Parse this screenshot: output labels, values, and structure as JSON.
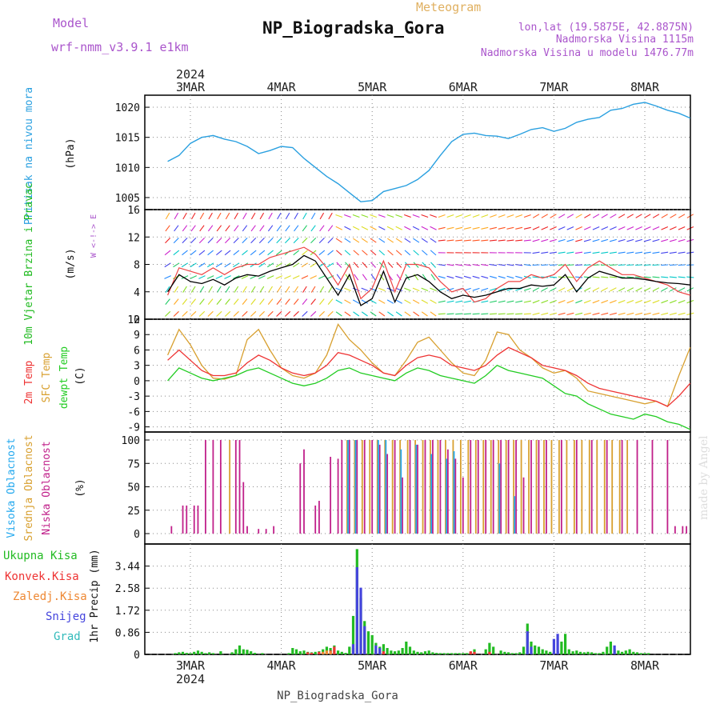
{
  "header": {
    "model_label": "Model",
    "model_name": "wrf-nmm_v3.9.1 e1km",
    "subtitle": "Meteogram",
    "title": "NP_Biogradska_Gora",
    "lonlat": "lon,lat (19.5875E, 42.8875N)",
    "elevation": "Nadmorska Visina 1115m",
    "model_elevation": "Nadmorska Visina u modelu 1476.77m",
    "footer_station": "NP_Biogradska_Gora",
    "watermark": "made by Angel"
  },
  "colors": {
    "pressure": "#2aa0e0",
    "temp2m": "#ee3333",
    "sfc": "#d8a030",
    "dewpt": "#22cc22",
    "high_cloud": "#22a8ee",
    "mid_cloud": "#d8a030",
    "low_cloud": "#c0208a",
    "total_precip": "#22bb22",
    "conv_precip": "#ee3333",
    "frozen": "#ee8833",
    "snow": "#4444dd",
    "graupel": "#33bbbb",
    "wind_label": "#22bb22",
    "model_text": "#aa55cc",
    "subtitle": "#e0b060"
  },
  "chart_data": [
    {
      "type": "line",
      "panel": "pressure",
      "ylabel": "Pritisak na nivou mora",
      "yunit": "(hPa)",
      "ylim": [
        1003,
        1022
      ],
      "yticks": [
        1005,
        1010,
        1015,
        1020
      ],
      "x_year": "2024",
      "x_ticks": [
        "3MAR",
        "4MAR",
        "5MAR",
        "6MAR",
        "7MAR",
        "8MAR"
      ],
      "x_hours": [
        0,
        3,
        6,
        9,
        12,
        15,
        18,
        21,
        24,
        27,
        30,
        33,
        36,
        39,
        42,
        45,
        48,
        51,
        54,
        57,
        60,
        63,
        66,
        69,
        72,
        75,
        78,
        81,
        84,
        87,
        90,
        93,
        96,
        99,
        102,
        105,
        108,
        111,
        114,
        117,
        120,
        123,
        126,
        129,
        132,
        135,
        138
      ],
      "series": [
        {
          "values": [
            1011.0,
            1012.0,
            1014.0,
            1015.0,
            1015.3,
            1014.7,
            1014.3,
            1013.5,
            1012.3,
            1012.8,
            1013.5,
            1013.3,
            1011.5,
            1010.0,
            1008.5,
            1007.3,
            1005.8,
            1004.3,
            1004.5,
            1006.0,
            1006.5,
            1007.0,
            1008.0,
            1009.5,
            1012.0,
            1014.3,
            1015.5,
            1015.7,
            1015.3,
            1015.2,
            1014.8,
            1015.5,
            1016.3,
            1016.6,
            1016.0,
            1016.5,
            1017.5,
            1018.0,
            1018.3,
            1019.5,
            1019.8,
            1020.5,
            1020.8,
            1020.2,
            1019.5,
            1019.0,
            1018.2
          ]
        }
      ]
    },
    {
      "type": "line",
      "panel": "wind",
      "ylabel": "10m Vjetar Brzina i Pravac",
      "yunit": "(m/s)",
      "ylim": [
        0,
        16
      ],
      "yticks": [
        0,
        4,
        8,
        12,
        16
      ],
      "compass_label": "W <-!-> E",
      "x_hours": [
        0,
        3,
        6,
        9,
        12,
        15,
        18,
        21,
        24,
        27,
        30,
        33,
        36,
        39,
        42,
        45,
        48,
        51,
        54,
        57,
        60,
        63,
        66,
        69,
        72,
        75,
        78,
        81,
        84,
        87,
        90,
        93,
        96,
        99,
        102,
        105,
        108,
        111,
        114,
        117,
        120,
        123,
        126,
        129,
        132,
        135,
        138
      ],
      "series": [
        {
          "name": "speed",
          "values": [
            4.0,
            6.5,
            5.5,
            5.2,
            5.8,
            5.0,
            6.0,
            6.5,
            6.3,
            7.0,
            7.5,
            8.0,
            9.3,
            8.5,
            6.0,
            3.5,
            6.5,
            2.0,
            3.0,
            7.0,
            2.5,
            6.0,
            6.5,
            5.5,
            4.0,
            3.0,
            3.5,
            3.2,
            3.5,
            4.0,
            4.5,
            4.5,
            5.0,
            4.8,
            5.0,
            6.5,
            4.0,
            6.0,
            7.0,
            6.5,
            6.0,
            6.0,
            5.8,
            5.5,
            5.3,
            5.2,
            5.0
          ]
        },
        {
          "name": "gust",
          "values": [
            3.5,
            7.5,
            7.0,
            6.5,
            7.5,
            6.5,
            7.5,
            8.0,
            8.0,
            9.0,
            9.5,
            10.0,
            10.5,
            9.5,
            7.5,
            5.0,
            8.0,
            3.0,
            4.5,
            8.5,
            4.0,
            8.0,
            8.0,
            7.5,
            5.5,
            4.0,
            4.5,
            2.5,
            3.0,
            4.5,
            5.5,
            5.5,
            6.5,
            6.0,
            6.5,
            8.0,
            5.5,
            7.5,
            8.5,
            7.5,
            6.5,
            6.5,
            6.0,
            5.5,
            5.0,
            4.0,
            3.5
          ]
        }
      ]
    },
    {
      "type": "line",
      "panel": "temperature",
      "ylabels": [
        "2m Temp",
        "SFC Temp",
        "dewpt Temp"
      ],
      "yunit": "(C)",
      "ylim": [
        -10,
        12
      ],
      "yticks": [
        -9,
        -6,
        -3,
        0,
        3,
        6,
        9,
        12
      ],
      "x_hours": [
        0,
        3,
        6,
        9,
        12,
        15,
        18,
        21,
        24,
        27,
        30,
        33,
        36,
        39,
        42,
        45,
        48,
        51,
        54,
        57,
        60,
        63,
        66,
        69,
        72,
        75,
        78,
        81,
        84,
        87,
        90,
        93,
        96,
        99,
        102,
        105,
        108,
        111,
        114,
        117,
        120,
        123,
        126,
        129,
        132,
        135,
        138
      ],
      "series": [
        {
          "name": "2m Temp",
          "values": [
            4.0,
            6.0,
            4.0,
            2.0,
            1.0,
            1.0,
            1.5,
            3.5,
            5.0,
            4.0,
            2.5,
            1.5,
            1.0,
            1.5,
            3.0,
            5.5,
            5.0,
            4.0,
            3.0,
            1.5,
            1.0,
            3.0,
            4.5,
            5.0,
            4.5,
            3.0,
            2.5,
            2.0,
            3.0,
            5.0,
            6.5,
            5.5,
            4.5,
            3.0,
            2.5,
            2.0,
            1.0,
            -0.5,
            -1.5,
            -2.0,
            -2.5,
            -3.0,
            -3.5,
            -4.0,
            -5.0,
            -3.0,
            -0.5
          ]
        },
        {
          "name": "SFC Temp",
          "values": [
            5.0,
            10.0,
            7.0,
            3.0,
            0.5,
            0.3,
            1.0,
            8.0,
            10.0,
            6.0,
            2.5,
            1.0,
            0.5,
            1.5,
            5.0,
            11.0,
            8.0,
            6.0,
            3.5,
            1.5,
            1.0,
            4.0,
            7.5,
            8.5,
            6.0,
            3.5,
            1.5,
            1.0,
            4.0,
            9.5,
            9.0,
            6.0,
            4.5,
            2.5,
            1.5,
            2.0,
            0.5,
            -2.0,
            -2.5,
            -3.0,
            -3.5,
            -4.0,
            -4.5,
            -4.0,
            -5.0,
            1.0,
            6.5
          ]
        },
        {
          "name": "dewpt Temp",
          "values": [
            0.0,
            2.5,
            1.5,
            0.5,
            0.0,
            0.5,
            1.0,
            2.0,
            2.5,
            1.5,
            0.5,
            -0.5,
            -1.0,
            -0.5,
            0.5,
            2.0,
            2.5,
            1.5,
            1.0,
            0.5,
            0.0,
            1.5,
            2.5,
            2.0,
            1.0,
            0.5,
            0.0,
            -0.5,
            1.0,
            3.0,
            2.0,
            1.5,
            1.0,
            0.5,
            -1.0,
            -2.5,
            -3.0,
            -4.5,
            -5.5,
            -6.5,
            -7.0,
            -7.5,
            -6.5,
            -7.0,
            -8.0,
            -8.5,
            -9.5
          ]
        }
      ]
    },
    {
      "type": "bar",
      "panel": "clouds",
      "ylabels": [
        "Visoka Oblacnost",
        "Srednja Oblacnost",
        "Niska Oblacnost"
      ],
      "yunit": "(%)",
      "ylim": [
        0,
        100
      ],
      "yticks": [
        0,
        25,
        50,
        75,
        100
      ],
      "series": [
        {
          "name": "Niska Oblacnost",
          "x": [
            1,
            4,
            5,
            7,
            8,
            10,
            12,
            14,
            18,
            19,
            20,
            21,
            24,
            26,
            28,
            35,
            36,
            39,
            40,
            43,
            45,
            46,
            48,
            50,
            52,
            54,
            56,
            58,
            60,
            62,
            64,
            66,
            68,
            70,
            72,
            74,
            76,
            78,
            80,
            82,
            84,
            86,
            88,
            90,
            92,
            94,
            96,
            98,
            100,
            104,
            108,
            112,
            116,
            120,
            124,
            128,
            132,
            134,
            136,
            137
          ],
          "values": [
            8,
            30,
            30,
            30,
            30,
            100,
            100,
            100,
            100,
            100,
            55,
            8,
            5,
            5,
            8,
            75,
            90,
            30,
            35,
            82,
            80,
            100,
            100,
            100,
            100,
            100,
            95,
            85,
            100,
            60,
            100,
            95,
            100,
            100,
            100,
            90,
            80,
            60,
            100,
            100,
            100,
            100,
            100,
            100,
            100,
            60,
            100,
            100,
            100,
            100,
            100,
            100,
            100,
            100,
            100,
            100,
            100,
            8,
            8,
            8
          ]
        },
        {
          "name": "Srednja Oblacnost",
          "x": [
            16,
            47,
            49,
            51,
            53,
            55,
            57,
            59,
            61,
            63,
            65,
            67,
            69,
            71,
            73,
            75,
            77,
            79,
            81,
            83,
            85,
            87,
            89,
            91,
            93,
            95,
            97,
            99,
            101,
            103,
            105,
            107,
            109,
            111,
            113,
            115,
            117,
            119,
            121
          ],
          "values": [
            100,
            100,
            100,
            100,
            100,
            100,
            100,
            100,
            100,
            100,
            100,
            100,
            100,
            100,
            100,
            100,
            100,
            100,
            100,
            100,
            100,
            100,
            100,
            100,
            100,
            100,
            100,
            100,
            100,
            100,
            100,
            100,
            100,
            100,
            100,
            100,
            100,
            100,
            100
          ]
        },
        {
          "name": "Visoka Oblacnost",
          "x": [
            48,
            50,
            56,
            58,
            62,
            66,
            70,
            74,
            76,
            88,
            92
          ],
          "values": [
            100,
            100,
            100,
            100,
            90,
            95,
            85,
            80,
            88,
            75,
            40
          ]
        }
      ]
    },
    {
      "type": "bar",
      "panel": "precip",
      "ylabel": "1hr Precip",
      "yunit": "(mm)",
      "legend": [
        "Ukupna Kisa",
        "Konvek.Kisa",
        "Zaledj.Kisa",
        "Snijeg",
        "Grad"
      ],
      "ylim": [
        0,
        4.3
      ],
      "yticks": [
        0,
        0.86,
        1.72,
        2.58,
        3.44
      ],
      "bottom_year": "2024",
      "series": [
        {
          "name": "Ukupna Kisa",
          "x": [
            2,
            3,
            4,
            5,
            6,
            7,
            8,
            9,
            10,
            11,
            12,
            14,
            17,
            18,
            19,
            20,
            21,
            22,
            23,
            25,
            32,
            33,
            34,
            35,
            36,
            37,
            38,
            39,
            40,
            41,
            42,
            43,
            44,
            45,
            46,
            47,
            48,
            49,
            50,
            51,
            52,
            53,
            54,
            55,
            56,
            57,
            58,
            59,
            60,
            61,
            62,
            63,
            64,
            65,
            66,
            67,
            68,
            69,
            70,
            71,
            72,
            73,
            74,
            75,
            76,
            77,
            78,
            79,
            80,
            81,
            84,
            85,
            86,
            88,
            89,
            90,
            91,
            92,
            93,
            94,
            95,
            96,
            97,
            98,
            99,
            100,
            101,
            102,
            103,
            104,
            105,
            106,
            107,
            108,
            109,
            110,
            111,
            112,
            113,
            114,
            115,
            116,
            117,
            118,
            119,
            120,
            121,
            122,
            123,
            124,
            125,
            126,
            127
          ],
          "values": [
            0.05,
            0.08,
            0.1,
            0.06,
            0.05,
            0.1,
            0.15,
            0.1,
            0.05,
            0.08,
            0.05,
            0.12,
            0.08,
            0.2,
            0.35,
            0.2,
            0.18,
            0.12,
            0.06,
            0.05,
            0.05,
            0.25,
            0.2,
            0.12,
            0.15,
            0.1,
            0.08,
            0.1,
            0.12,
            0.2,
            0.3,
            0.25,
            0.35,
            0.15,
            0.1,
            0.06,
            0.3,
            1.5,
            4.1,
            2.2,
            1.3,
            0.9,
            0.75,
            0.45,
            0.3,
            0.4,
            0.25,
            0.15,
            0.12,
            0.15,
            0.25,
            0.5,
            0.3,
            0.15,
            0.1,
            0.08,
            0.12,
            0.15,
            0.08,
            0.06,
            0.05,
            0.05,
            0.05,
            0.05,
            0.05,
            0.05,
            0.05,
            0.05,
            0.1,
            0.2,
            0.2,
            0.45,
            0.3,
            0.15,
            0.1,
            0.08,
            0.05,
            0.05,
            0.08,
            0.3,
            1.2,
            0.5,
            0.35,
            0.3,
            0.2,
            0.15,
            0.1,
            0.08,
            0.12,
            0.5,
            0.8,
            0.2,
            0.12,
            0.15,
            0.1,
            0.08,
            0.1,
            0.08,
            0.05,
            0.05,
            0.1,
            0.3,
            0.5,
            0.2,
            0.15,
            0.1,
            0.15,
            0.2,
            0.1,
            0.08,
            0.05,
            0.05,
            0.05
          ]
        },
        {
          "name": "Konvek.Kisa",
          "x": [
            37,
            38,
            40,
            43,
            44,
            49,
            52,
            55,
            57,
            80,
            81,
            85
          ],
          "values": [
            0.08,
            0.06,
            0.1,
            0.15,
            0.3,
            0.25,
            0.2,
            0.15,
            0.12,
            0.12,
            0.1,
            0.1
          ]
        },
        {
          "name": "Snijeg",
          "x": [
            49,
            50,
            51,
            52,
            55,
            56,
            95,
            96,
            102,
            103,
            118
          ],
          "values": [
            0.4,
            3.4,
            2.6,
            1.1,
            0.35,
            0.25,
            0.9,
            0.3,
            0.6,
            0.8,
            0.35
          ]
        },
        {
          "name": "Zaledj.Kisa",
          "x": [
            41,
            42,
            43
          ],
          "values": [
            0.1,
            0.15,
            0.12
          ]
        },
        {
          "name": "Grad",
          "x": [],
          "values": []
        }
      ]
    }
  ]
}
